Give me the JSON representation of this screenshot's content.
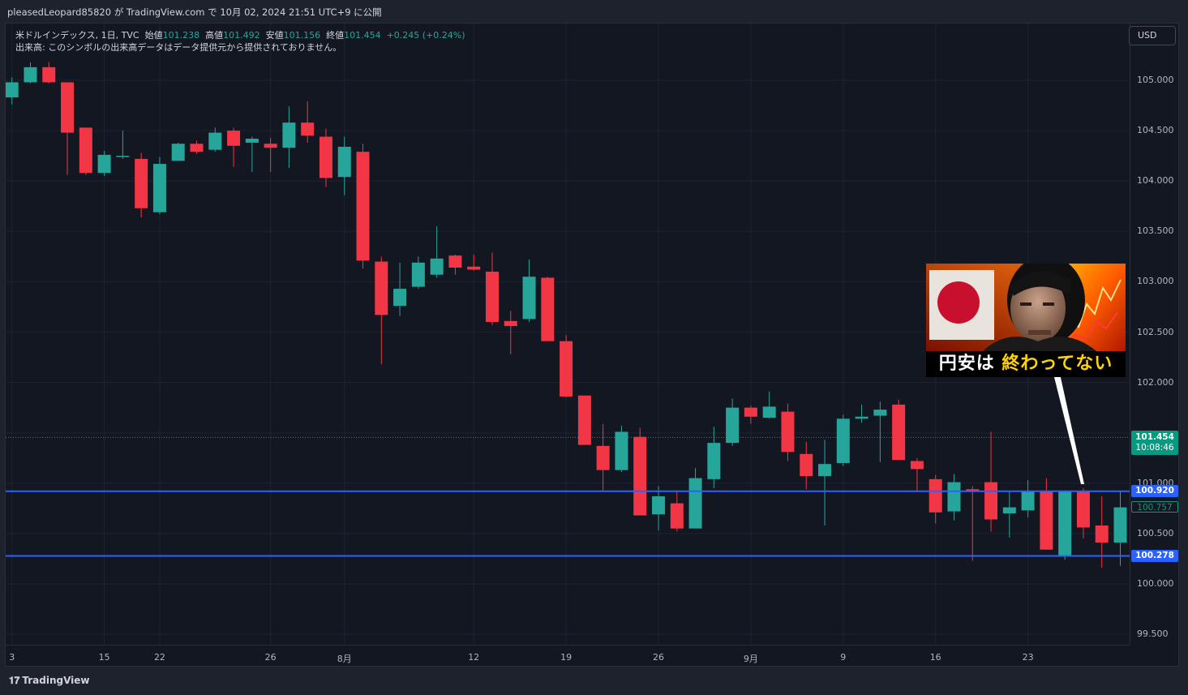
{
  "header": {
    "publish_line": "pleasedLeopard85820 が TradingView.com で 10月 02, 2024 21:51 UTC+9 に公開"
  },
  "legend": {
    "symbol": "米ドルインデックス, 1日, TVC",
    "open_label": "始値",
    "open": "101.238",
    "high_label": "高値",
    "high": "101.492",
    "low_label": "安値",
    "low": "101.156",
    "close_label": "終値",
    "close": "101.454",
    "change": "+0.245 (+0.24%)",
    "volume_note": "出来高: このシンボルの出来高データはデータ提供元から提供されておりません。"
  },
  "currency_button": "USD",
  "price_tags": {
    "last_price": "101.454",
    "countdown": "10:08:46",
    "line_upper": "100.920",
    "line_lower": "100.278",
    "cursor_price": "100.757"
  },
  "thumbnail": {
    "caption_plain": "円安は ",
    "caption_highlight": "終わってない"
  },
  "footer": {
    "brand": "TradingView",
    "logo_mark": "𝟏𝟕"
  },
  "colors": {
    "up": "#26a69a",
    "down": "#f23645",
    "hline": "#2962ff",
    "background": "#131722",
    "grid": "#1f2330",
    "last_price": "#089981"
  },
  "chart_data": {
    "type": "candlestick",
    "y_ticks": [
      "105.000",
      "104.500",
      "104.000",
      "103.500",
      "103.000",
      "102.500",
      "102.000",
      "101.000",
      "100.500",
      "100.000",
      "99.500"
    ],
    "x_ticks": [
      "3",
      "15",
      "22",
      "26",
      "8月",
      "12",
      "19",
      "26",
      "9月",
      "9",
      "16",
      "23"
    ],
    "ylim": [
      99.28,
      105.28
    ],
    "horizontal_lines": [
      100.92,
      100.278
    ],
    "candles": [
      {
        "o": 104.83,
        "h": 105.03,
        "l": 104.76,
        "c": 104.98
      },
      {
        "o": 104.98,
        "h": 105.18,
        "l": 104.97,
        "c": 105.13
      },
      {
        "o": 105.13,
        "h": 105.18,
        "l": 104.97,
        "c": 104.98
      },
      {
        "o": 104.98,
        "h": 104.98,
        "l": 104.06,
        "c": 104.48
      },
      {
        "o": 104.53,
        "h": 104.53,
        "l": 104.06,
        "c": 104.08
      },
      {
        "o": 104.08,
        "h": 104.3,
        "l": 104.05,
        "c": 104.26
      },
      {
        "o": 104.25,
        "h": 104.5,
        "l": 104.22,
        "c": 104.25
      },
      {
        "o": 104.22,
        "h": 104.28,
        "l": 103.64,
        "c": 103.73
      },
      {
        "o": 103.69,
        "h": 104.24,
        "l": 103.67,
        "c": 104.17
      },
      {
        "o": 104.2,
        "h": 104.38,
        "l": 104.2,
        "c": 104.37
      },
      {
        "o": 104.37,
        "h": 104.4,
        "l": 104.27,
        "c": 104.29
      },
      {
        "o": 104.31,
        "h": 104.53,
        "l": 104.29,
        "c": 104.48
      },
      {
        "o": 104.5,
        "h": 104.53,
        "l": 104.14,
        "c": 104.35
      },
      {
        "o": 104.38,
        "h": 104.44,
        "l": 104.09,
        "c": 104.42
      },
      {
        "o": 104.37,
        "h": 104.43,
        "l": 104.09,
        "c": 104.33
      },
      {
        "o": 104.33,
        "h": 104.74,
        "l": 104.13,
        "c": 104.58
      },
      {
        "o": 104.58,
        "h": 104.79,
        "l": 104.38,
        "c": 104.45
      },
      {
        "o": 104.44,
        "h": 104.52,
        "l": 103.94,
        "c": 104.03
      },
      {
        "o": 104.04,
        "h": 104.44,
        "l": 103.86,
        "c": 104.34
      },
      {
        "o": 104.29,
        "h": 104.37,
        "l": 103.13,
        "c": 103.21
      },
      {
        "o": 103.2,
        "h": 103.25,
        "l": 102.18,
        "c": 102.67
      },
      {
        "o": 102.76,
        "h": 103.19,
        "l": 102.66,
        "c": 102.93
      },
      {
        "o": 102.95,
        "h": 103.25,
        "l": 102.93,
        "c": 103.19
      },
      {
        "o": 103.07,
        "h": 103.55,
        "l": 103.04,
        "c": 103.23
      },
      {
        "o": 103.26,
        "h": 103.27,
        "l": 103.07,
        "c": 103.14
      },
      {
        "o": 103.15,
        "h": 103.27,
        "l": 103.11,
        "c": 103.12
      },
      {
        "o": 103.1,
        "h": 103.29,
        "l": 102.57,
        "c": 102.6
      },
      {
        "o": 102.61,
        "h": 102.71,
        "l": 102.28,
        "c": 102.56
      },
      {
        "o": 102.63,
        "h": 103.22,
        "l": 102.6,
        "c": 103.05
      },
      {
        "o": 103.04,
        "h": 103.05,
        "l": 102.41,
        "c": 102.41
      },
      {
        "o": 102.41,
        "h": 102.47,
        "l": 101.85,
        "c": 101.86
      },
      {
        "o": 101.87,
        "h": 101.87,
        "l": 101.38,
        "c": 101.38
      },
      {
        "o": 101.37,
        "h": 101.59,
        "l": 100.92,
        "c": 101.13
      },
      {
        "o": 101.13,
        "h": 101.57,
        "l": 101.11,
        "c": 101.51
      },
      {
        "o": 101.46,
        "h": 101.55,
        "l": 100.68,
        "c": 100.68
      },
      {
        "o": 100.69,
        "h": 100.97,
        "l": 100.53,
        "c": 100.87
      },
      {
        "o": 100.8,
        "h": 100.92,
        "l": 100.52,
        "c": 100.55
      },
      {
        "o": 100.55,
        "h": 101.15,
        "l": 100.55,
        "c": 101.05
      },
      {
        "o": 101.04,
        "h": 101.56,
        "l": 100.95,
        "c": 101.4
      },
      {
        "o": 101.4,
        "h": 101.84,
        "l": 101.37,
        "c": 101.75
      },
      {
        "o": 101.75,
        "h": 101.77,
        "l": 101.59,
        "c": 101.66
      },
      {
        "o": 101.65,
        "h": 101.91,
        "l": 101.64,
        "c": 101.76
      },
      {
        "o": 101.71,
        "h": 101.79,
        "l": 101.22,
        "c": 101.31
      },
      {
        "o": 101.29,
        "h": 101.41,
        "l": 100.94,
        "c": 101.07
      },
      {
        "o": 101.07,
        "h": 101.43,
        "l": 100.58,
        "c": 101.19
      },
      {
        "o": 101.2,
        "h": 101.68,
        "l": 101.17,
        "c": 101.64
      },
      {
        "o": 101.64,
        "h": 101.78,
        "l": 101.6,
        "c": 101.66
      },
      {
        "o": 101.67,
        "h": 101.81,
        "l": 101.21,
        "c": 101.73
      },
      {
        "o": 101.78,
        "h": 101.83,
        "l": 101.23,
        "c": 101.23
      },
      {
        "o": 101.22,
        "h": 101.25,
        "l": 100.91,
        "c": 101.14
      },
      {
        "o": 101.04,
        "h": 101.08,
        "l": 100.6,
        "c": 100.71
      },
      {
        "o": 100.72,
        "h": 101.09,
        "l": 100.63,
        "c": 101.01
      },
      {
        "o": 100.94,
        "h": 100.97,
        "l": 100.23,
        "c": 100.92
      },
      {
        "o": 101.01,
        "h": 101.51,
        "l": 100.52,
        "c": 100.64
      },
      {
        "o": 100.7,
        "h": 100.92,
        "l": 100.46,
        "c": 100.76
      },
      {
        "o": 100.73,
        "h": 101.03,
        "l": 100.66,
        "c": 100.92
      },
      {
        "o": 100.92,
        "h": 101.05,
        "l": 100.34,
        "c": 100.34
      },
      {
        "o": 100.28,
        "h": 100.93,
        "l": 100.24,
        "c": 100.92
      },
      {
        "o": 100.92,
        "h": 100.95,
        "l": 100.45,
        "c": 100.56
      },
      {
        "o": 100.58,
        "h": 100.87,
        "l": 100.16,
        "c": 100.41
      },
      {
        "o": 100.41,
        "h": 100.92,
        "l": 100.18,
        "c": 100.76
      }
    ]
  }
}
